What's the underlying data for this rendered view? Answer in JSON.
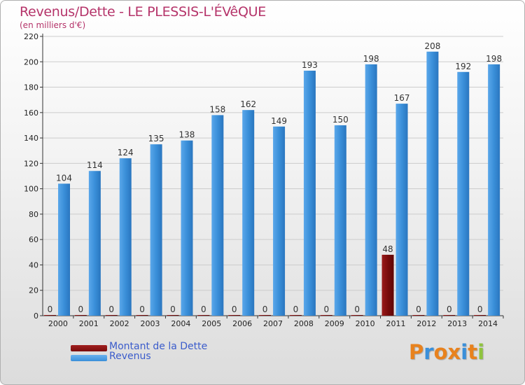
{
  "chart_data": {
    "type": "bar",
    "title": "Revenus/Dette - LE PLESSIS-L'ÉVêQUE",
    "subtitle": "(en milliers d'€)",
    "xlabel": "",
    "ylabel": "",
    "categories": [
      "2000",
      "2001",
      "2002",
      "2003",
      "2004",
      "2005",
      "2006",
      "2007",
      "2008",
      "2009",
      "2010",
      "2011",
      "2012",
      "2013",
      "2014"
    ],
    "series": [
      {
        "name": "Montant de la Dette",
        "color": "#7a0c0c",
        "values": [
          0,
          0,
          0,
          0,
          0,
          0,
          0,
          0,
          0,
          0,
          0,
          48,
          0,
          0,
          0
        ]
      },
      {
        "name": "Revenus",
        "color": "#3a8fd9",
        "values": [
          104,
          114,
          124,
          135,
          138,
          158,
          162,
          149,
          193,
          150,
          198,
          167,
          208,
          192,
          198
        ]
      }
    ],
    "ylim": [
      0,
      220
    ],
    "yticks": [
      0,
      20,
      40,
      60,
      80,
      100,
      120,
      140,
      160,
      180,
      200,
      220
    ],
    "grid": true,
    "legend": "bottom-left"
  },
  "logo": {
    "text": "Proxiti",
    "colors": [
      "#e8821e",
      "#3a8fd9",
      "#e8821e",
      "#e8821e",
      "#3a8fd9",
      "#e8821e",
      "#8fc43e"
    ]
  }
}
